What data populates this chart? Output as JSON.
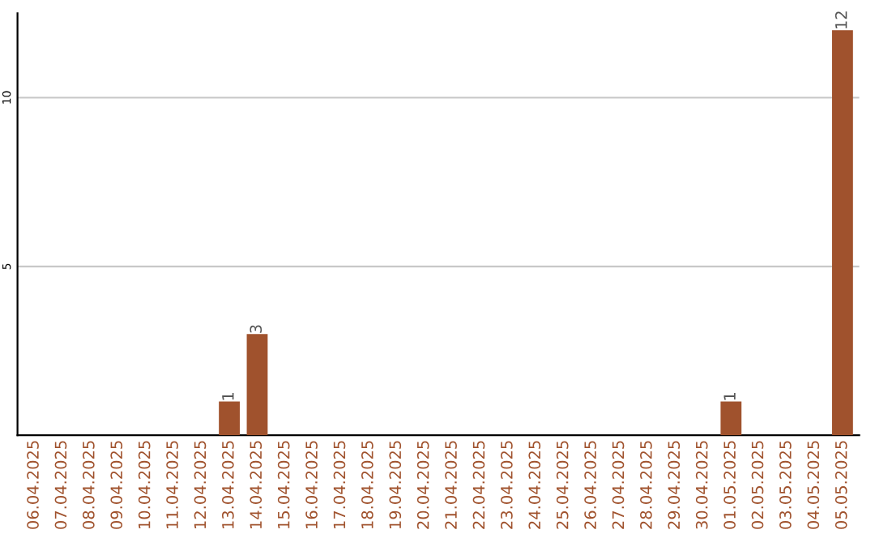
{
  "chart_data": {
    "type": "bar",
    "categories": [
      "06.04.2025",
      "07.04.2025",
      "08.04.2025",
      "09.04.2025",
      "10.04.2025",
      "11.04.2025",
      "12.04.2025",
      "13.04.2025",
      "14.04.2025",
      "15.04.2025",
      "16.04.2025",
      "17.04.2025",
      "18.04.2025",
      "19.04.2025",
      "20.04.2025",
      "21.04.2025",
      "22.04.2025",
      "23.04.2025",
      "24.04.2025",
      "25.04.2025",
      "26.04.2025",
      "27.04.2025",
      "28.04.2025",
      "29.04.2025",
      "30.04.2025",
      "01.05.2025",
      "02.05.2025",
      "03.05.2025",
      "04.05.2025",
      "05.05.2025"
    ],
    "values": [
      0,
      0,
      0,
      0,
      0,
      0,
      0,
      1,
      3,
      0,
      0,
      0,
      0,
      0,
      0,
      0,
      0,
      0,
      0,
      0,
      0,
      0,
      0,
      0,
      0,
      1,
      0,
      0,
      0,
      12
    ],
    "value_labels": [
      null,
      null,
      null,
      null,
      null,
      null,
      null,
      "1",
      "3",
      null,
      null,
      null,
      null,
      null,
      null,
      null,
      null,
      null,
      null,
      null,
      null,
      null,
      null,
      null,
      null,
      "1",
      null,
      null,
      null,
      "12"
    ],
    "color": "#a0522d",
    "ylim": [
      0,
      12.5
    ],
    "yticks": [
      5,
      10
    ],
    "grid": "y"
  }
}
